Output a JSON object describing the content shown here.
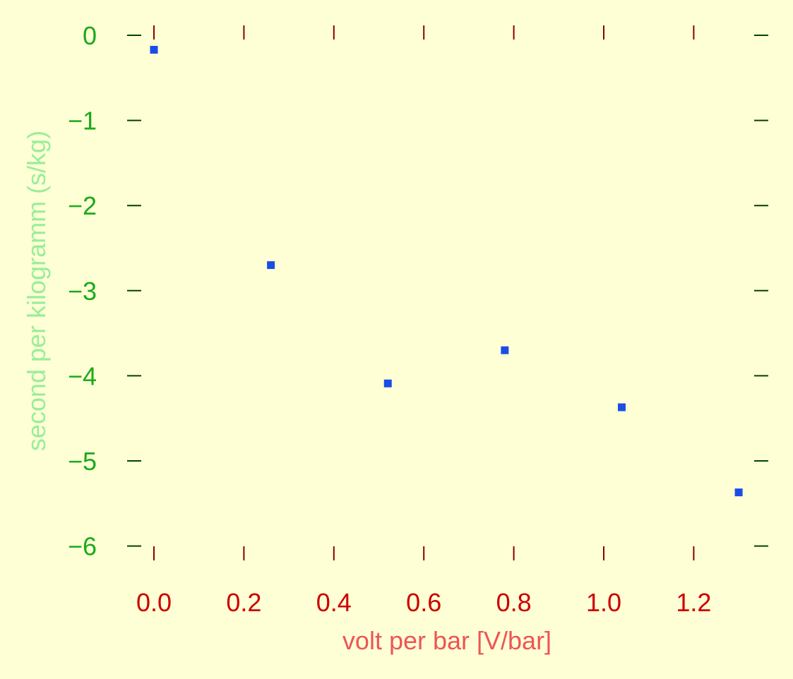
{
  "chart_data": {
    "type": "scatter",
    "title": "",
    "xlabel": "volt per bar [V/bar]",
    "ylabel": "second per kilogramm (s/kg)",
    "xlim": [
      0.0,
      1.3
    ],
    "ylim": [
      -6,
      0
    ],
    "x_ticks": [
      0.0,
      0.2,
      0.4,
      0.6,
      0.8,
      1.0,
      1.2
    ],
    "x_tick_labels": [
      "0.0",
      "0.2",
      "0.4",
      "0.6",
      "0.8",
      "1.0",
      "1.2"
    ],
    "y_ticks": [
      0,
      -1,
      -2,
      -3,
      -4,
      -5,
      -6
    ],
    "y_tick_labels": [
      "0",
      "−1",
      "−2",
      "−3",
      "−4",
      "−5",
      "−6"
    ],
    "grid": false,
    "series": [
      {
        "x": [
          0.0,
          0.26,
          0.52,
          0.78,
          1.04,
          1.3
        ],
        "y": [
          -0.17,
          -2.7,
          -4.09,
          -3.7,
          -4.37,
          -5.37
        ]
      }
    ],
    "colors": {
      "background": "#ffffd6",
      "marker": "#1a4de6",
      "x_tick_labels": "#cc0000",
      "x_label": "#ee5555",
      "y_tick_labels": "#1aaa1a",
      "y_label": "#99ee99",
      "x_ticks": "#880000",
      "y_ticks": "#004400"
    }
  }
}
